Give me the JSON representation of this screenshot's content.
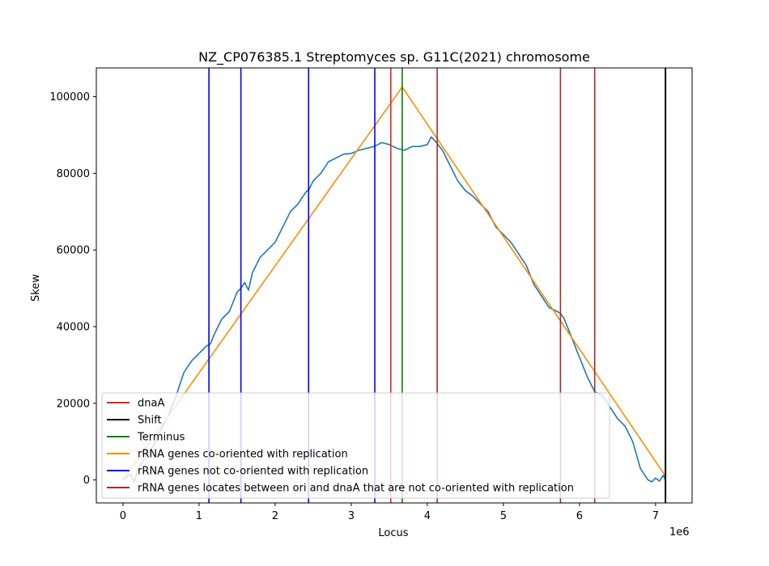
{
  "chart_data": {
    "type": "line",
    "title": "NZ_CP076385.1 Streptomyces sp. G11C(2021) chromosome",
    "xlabel": "Locus",
    "ylabel": "Skew",
    "x_multiplier_label": "1e6",
    "xlim": [
      -0.35,
      7.48
    ],
    "ylim": [
      -6000,
      107500
    ],
    "x_ticks": [
      0,
      1,
      2,
      3,
      4,
      5,
      6,
      7
    ],
    "y_ticks": [
      0,
      20000,
      40000,
      60000,
      80000,
      100000
    ],
    "legend_position": "lower-left",
    "legend": [
      {
        "label": "dnaA",
        "color": "#d62728"
      },
      {
        "label": "Shift",
        "color": "#000000"
      },
      {
        "label": "Terminus",
        "color": "#008000"
      },
      {
        "label": "rRNA genes co-oriented with replication",
        "color": "#ff8c00"
      },
      {
        "label": "rRNA genes not co-oriented with replication",
        "color": "#0000ff"
      },
      {
        "label": "rRNA genes locates between ori and dnaA that are not co-oriented with replication",
        "color": "#a52a2a"
      }
    ],
    "skew_series": {
      "color": "#1f77b4",
      "x": [
        0,
        0.1,
        0.15,
        0.2,
        0.3,
        0.4,
        0.5,
        0.6,
        0.7,
        0.8,
        0.9,
        1.0,
        1.1,
        1.15,
        1.2,
        1.3,
        1.4,
        1.5,
        1.55,
        1.6,
        1.65,
        1.7,
        1.8,
        1.9,
        2.0,
        2.1,
        2.2,
        2.3,
        2.4,
        2.45,
        2.5,
        2.6,
        2.7,
        2.8,
        2.9,
        3.0,
        3.1,
        3.2,
        3.3,
        3.4,
        3.5,
        3.6,
        3.7,
        3.8,
        3.9,
        4.0,
        4.05,
        4.1,
        4.2,
        4.3,
        4.4,
        4.5,
        4.6,
        4.7,
        4.8,
        4.9,
        5.0,
        5.1,
        5.2,
        5.3,
        5.4,
        5.5,
        5.6,
        5.7,
        5.75,
        5.8,
        5.9,
        6.0,
        6.1,
        6.2,
        6.3,
        6.4,
        6.5,
        6.6,
        6.7,
        6.8,
        6.9,
        6.95,
        7.0,
        7.05,
        7.1,
        7.13
      ],
      "y": [
        0,
        1500,
        -500,
        3000,
        6000,
        9000,
        13000,
        17000,
        22000,
        28000,
        31000,
        33000,
        35000,
        35500,
        38000,
        42000,
        44000,
        49000,
        50000,
        51500,
        49500,
        54000,
        58000,
        60000,
        62000,
        66000,
        70000,
        72000,
        75000,
        76000,
        78000,
        80000,
        83000,
        84000,
        85000,
        85200,
        86000,
        86500,
        87000,
        88000,
        87500,
        86500,
        86000,
        87000,
        87000,
        87500,
        89500,
        88500,
        86000,
        82000,
        78000,
        75500,
        74000,
        72000,
        70000,
        66000,
        64000,
        62000,
        59000,
        56000,
        51000,
        48000,
        45000,
        44000,
        43500,
        42000,
        37000,
        32000,
        27000,
        23000,
        22000,
        19000,
        16000,
        14000,
        10000,
        3000,
        0,
        -500,
        500,
        -300,
        1200,
        0
      ]
    },
    "fit_series": {
      "color": "#ff8c00",
      "x": [
        0,
        3.67,
        7.13
      ],
      "y": [
        0,
        102500,
        1000
      ]
    },
    "vertical_lines": [
      {
        "x": 1.13,
        "color": "#0000ff"
      },
      {
        "x": 1.55,
        "color": "#0000ff"
      },
      {
        "x": 2.44,
        "color": "#0000ff"
      },
      {
        "x": 3.31,
        "color": "#0000ff"
      },
      {
        "x": 3.52,
        "color": "#d62728"
      },
      {
        "x": 3.67,
        "color": "#008000"
      },
      {
        "x": 4.13,
        "color": "#a52a2a"
      },
      {
        "x": 5.75,
        "color": "#a52a2a"
      },
      {
        "x": 6.2,
        "color": "#a52a2a"
      },
      {
        "x": 7.13,
        "color": "#000000"
      }
    ]
  }
}
